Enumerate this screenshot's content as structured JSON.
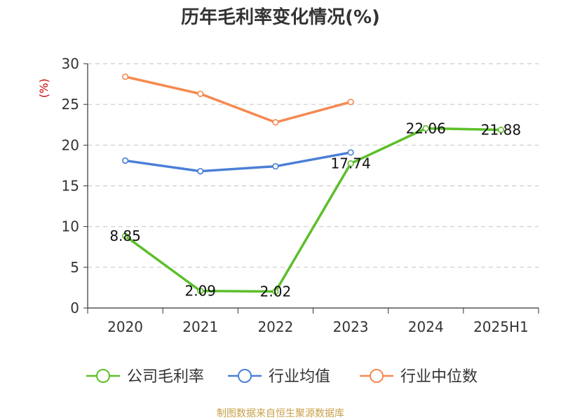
{
  "chart_data": {
    "type": "line",
    "title": "历年毛利率变化情况(%)",
    "ylabel": "(%)",
    "categories": [
      "2020",
      "2021",
      "2022",
      "2023",
      "2024",
      "2025H1"
    ],
    "ylim": [
      0,
      30
    ],
    "yticks": [
      0,
      5,
      10,
      15,
      20,
      25,
      30
    ],
    "grid": true,
    "legend_position": "bottom",
    "series": [
      {
        "name": "公司毛利率",
        "color": "#5cbf2a",
        "values": [
          8.85,
          2.09,
          2.02,
          17.74,
          22.06,
          21.88
        ],
        "labels": [
          "8.85",
          "2.09",
          "2.02",
          "17.74",
          "22.06",
          "21.88"
        ]
      },
      {
        "name": "行业均值",
        "color": "#4a7fd6",
        "values": [
          18.1,
          16.8,
          17.4,
          19.1,
          null,
          null
        ]
      },
      {
        "name": "行业中位数",
        "color": "#f5894f",
        "values": [
          28.4,
          26.3,
          22.8,
          25.3,
          null,
          null
        ]
      }
    ]
  },
  "footer": {
    "source": "制图数据来自恒生聚源数据库"
  }
}
